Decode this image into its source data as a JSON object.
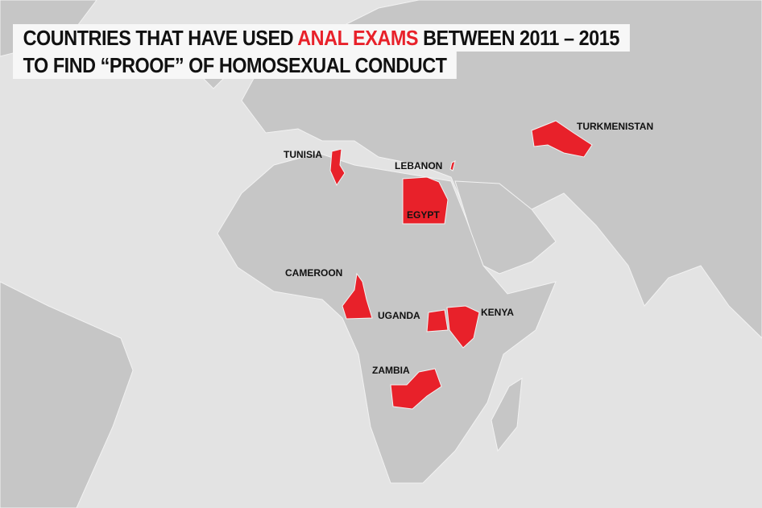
{
  "title": {
    "line1_before": "COUNTRIES THAT HAVE USED",
    "line1_highlight": "ANAL EXAMS",
    "line1_after": "BETWEEN 2011 – 2015",
    "line2": "TO FIND “PROOF” OF HOMOSEXUAL CONDUCT"
  },
  "colors": {
    "ocean": "#e3e3e3",
    "land": "#c6c6c6",
    "highlight": "#e8212a",
    "border": "#f2f2f2"
  },
  "countries": [
    {
      "name": "TURKMENISTAN"
    },
    {
      "name": "TUNISIA"
    },
    {
      "name": "LEBANON"
    },
    {
      "name": "EGYPT"
    },
    {
      "name": "CAMEROON"
    },
    {
      "name": "UGANDA"
    },
    {
      "name": "KENYA"
    },
    {
      "name": "ZAMBIA"
    }
  ]
}
